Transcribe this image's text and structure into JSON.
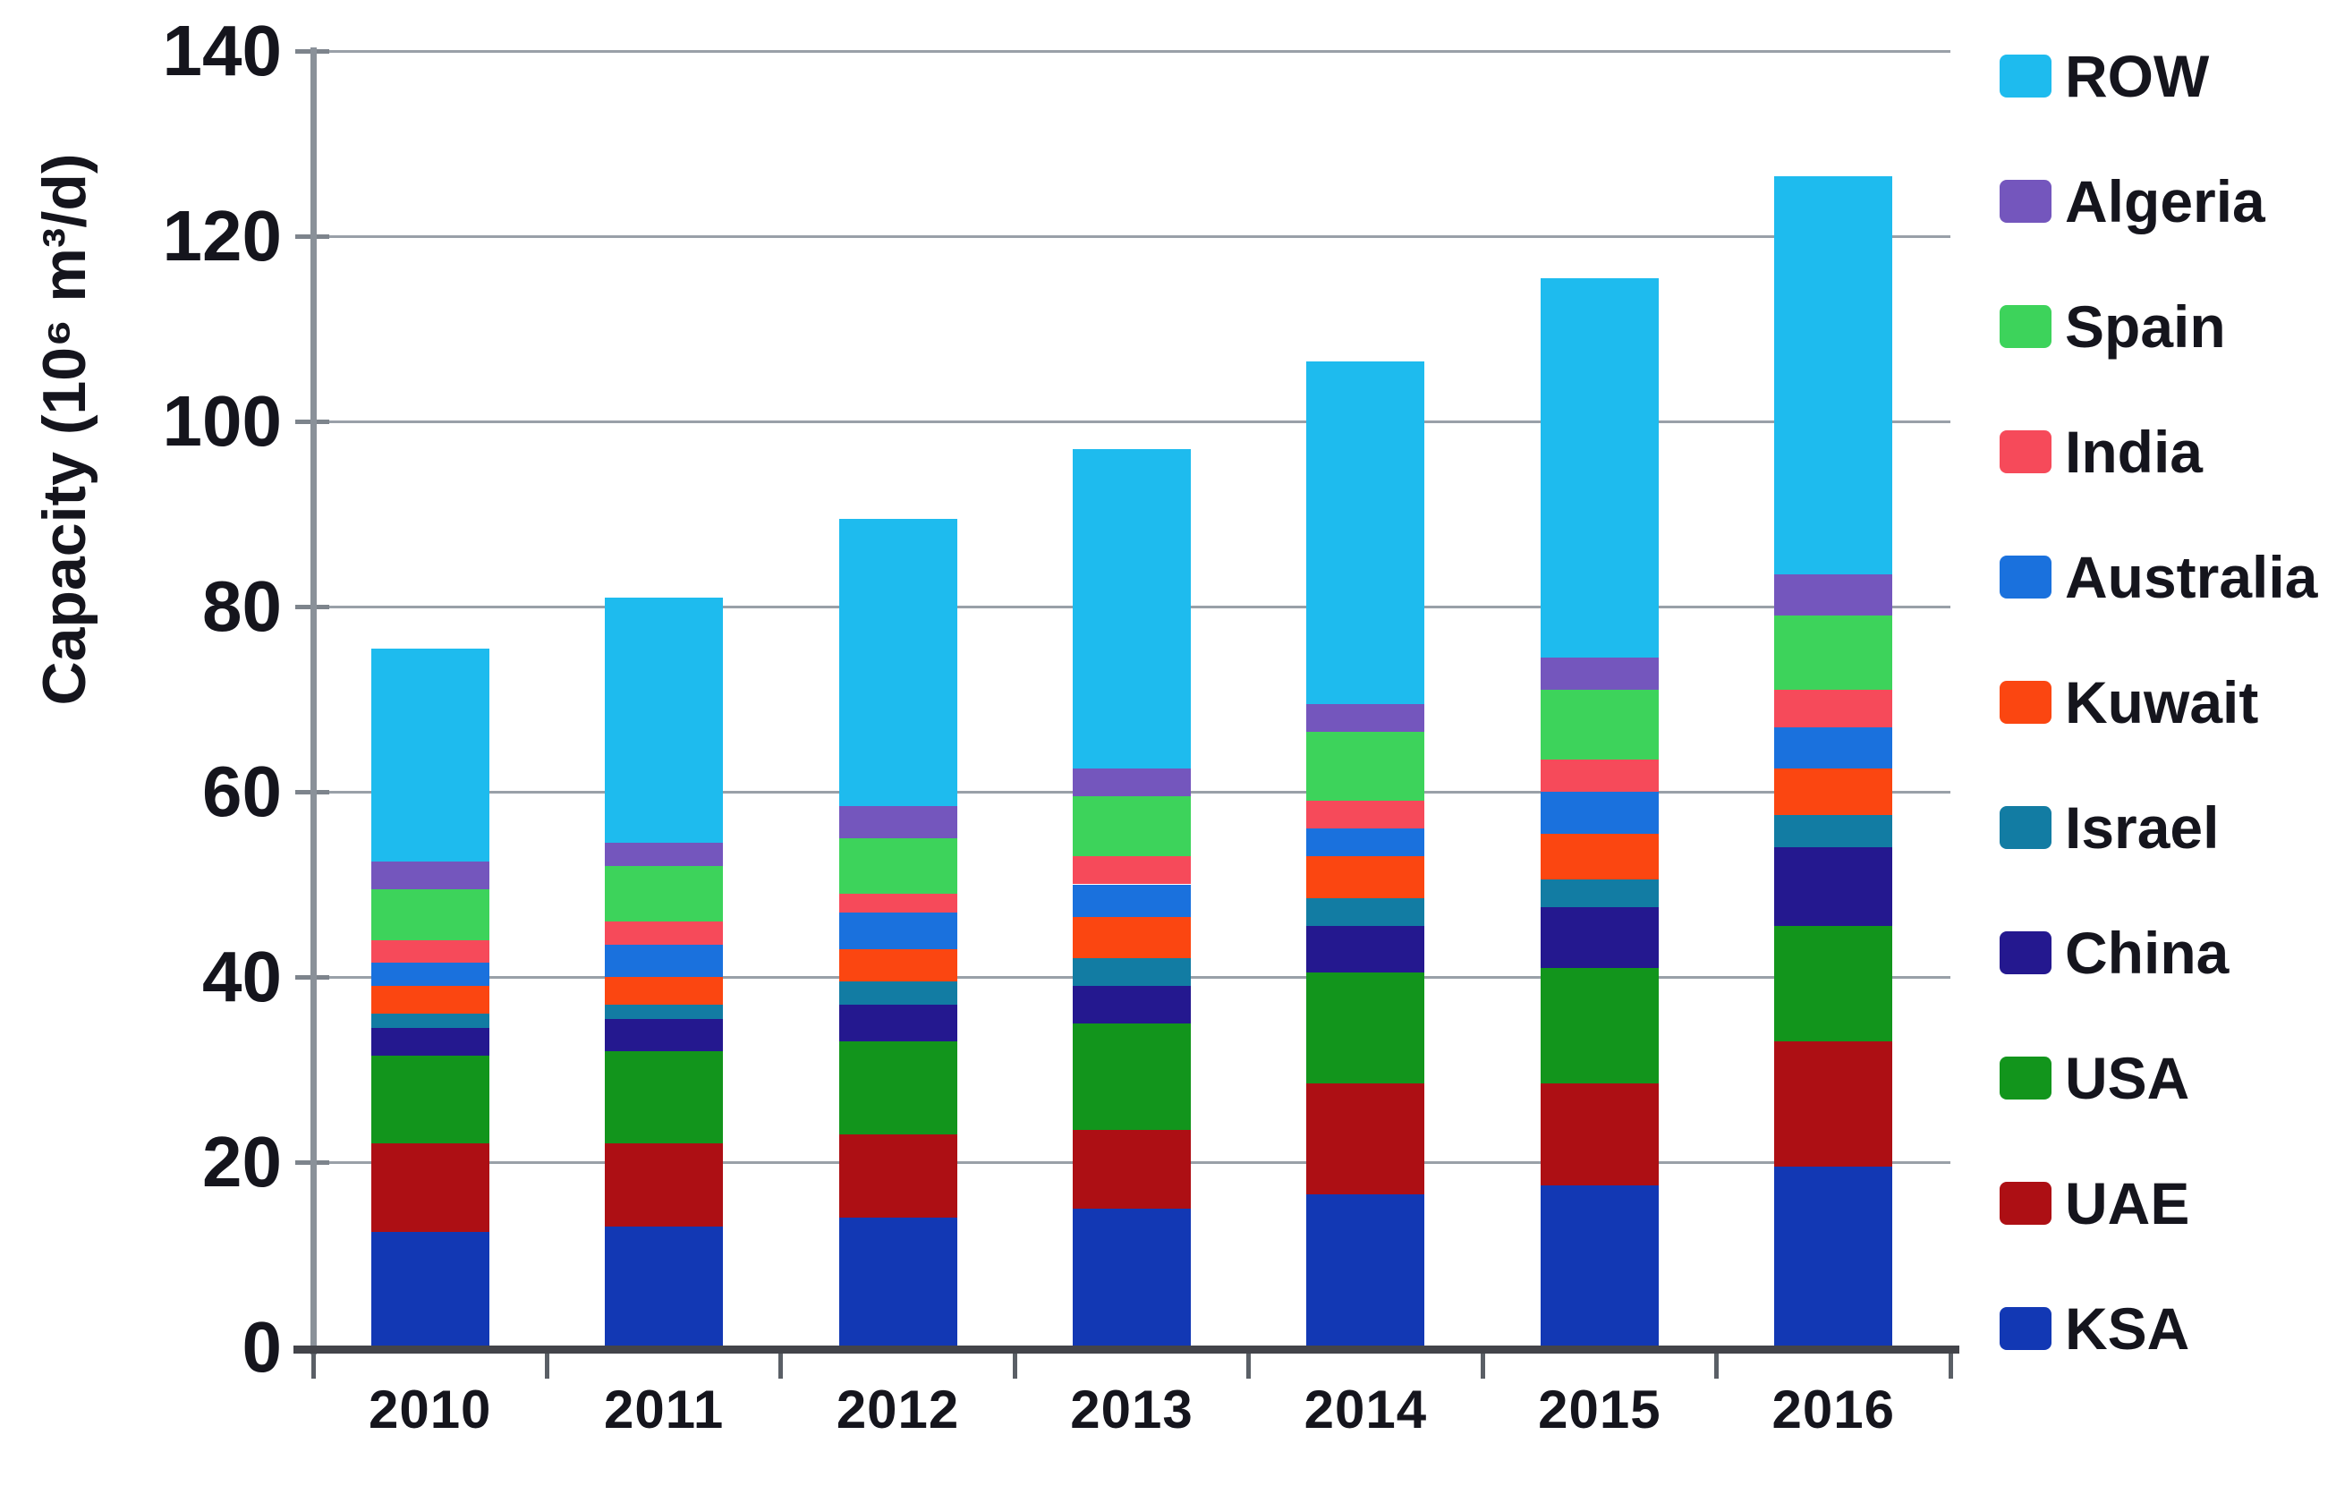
{
  "chart_data": {
    "type": "bar",
    "stacked": true,
    "title": "",
    "xlabel": "",
    "ylabel": "Capacity (10⁶ m³/d)",
    "categories": [
      "2010",
      "2011",
      "2012",
      "2013",
      "2014",
      "2015",
      "2016"
    ],
    "y_ticks": [
      0,
      20,
      40,
      60,
      80,
      100,
      120,
      140
    ],
    "ylim": [
      0,
      140
    ],
    "grid": true,
    "legend_position": "right",
    "legend_order": [
      "ROW",
      "Algeria",
      "Spain",
      "India",
      "Australia",
      "Kuwait",
      "Israel",
      "China",
      "USA",
      "UAE",
      "KSA"
    ],
    "series": [
      {
        "name": "KSA",
        "color": "#1238b4",
        "values": [
          12.5,
          13,
          14,
          15,
          16.5,
          17.5,
          19.5
        ]
      },
      {
        "name": "UAE",
        "color": "#ad0f14",
        "values": [
          9.5,
          9,
          9,
          8.5,
          12,
          11,
          13.5
        ]
      },
      {
        "name": "USA",
        "color": "#12951c",
        "values": [
          9.5,
          10,
          10,
          11.5,
          12,
          12.5,
          12.5
        ]
      },
      {
        "name": "China",
        "color": "#24188f",
        "values": [
          3,
          3.5,
          4,
          4,
          5,
          6.5,
          8.5
        ]
      },
      {
        "name": "Israel",
        "color": "#127ca3",
        "values": [
          1.5,
          1.5,
          2.5,
          3,
          3,
          3,
          3.5
        ]
      },
      {
        "name": "Kuwait",
        "color": "#fb4611",
        "values": [
          3,
          3,
          3.5,
          4.5,
          4.5,
          5,
          5
        ]
      },
      {
        "name": "Australia",
        "color": "#1a71dd",
        "values": [
          2.5,
          3.5,
          4,
          3.5,
          3,
          4.5,
          4.5
        ]
      },
      {
        "name": "India",
        "color": "#f64a5a",
        "values": [
          2.5,
          2.5,
          2,
          3,
          3,
          3.5,
          4
        ]
      },
      {
        "name": "Spain",
        "color": "#3dd35b",
        "values": [
          5.5,
          6,
          6,
          6.5,
          7.5,
          7.5,
          8
        ]
      },
      {
        "name": "Algeria",
        "color": "#7456bd",
        "values": [
          3,
          2.5,
          3.5,
          3,
          3,
          3.5,
          4.5
        ]
      },
      {
        "name": "ROW",
        "color": "#1ebbee",
        "values": [
          23,
          26.5,
          31,
          34.5,
          37,
          41,
          43
        ]
      }
    ],
    "totals": [
      75.5,
      81,
      89.5,
      97,
      106.5,
      115.5,
      126.5
    ]
  }
}
